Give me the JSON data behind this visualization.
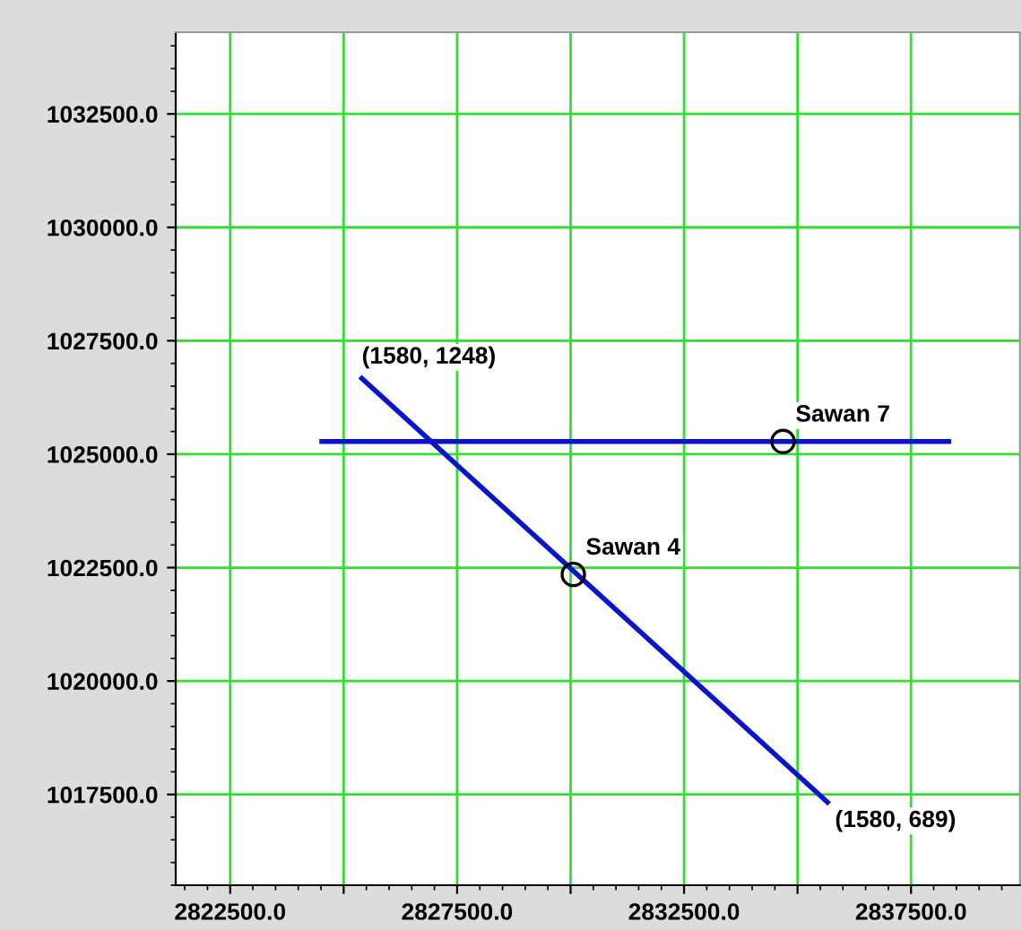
{
  "chart_data": {
    "type": "line",
    "xlim": [
      2821300,
      2839900
    ],
    "ylim": [
      1015500,
      1034300
    ],
    "xticks": [
      {
        "value": 2822500,
        "label": "2822500.0"
      },
      {
        "value": 2825000,
        "label": null
      },
      {
        "value": 2827500,
        "label": "2827500.0"
      },
      {
        "value": 2830000,
        "label": null
      },
      {
        "value": 2832500,
        "label": "2832500.0"
      },
      {
        "value": 2835000,
        "label": null
      },
      {
        "value": 2837500,
        "label": "2837500.0"
      }
    ],
    "yticks": [
      {
        "value": 1017500,
        "label": "1017500.0"
      },
      {
        "value": 1020000,
        "label": "1020000.0"
      },
      {
        "value": 1022500,
        "label": "1022500.0"
      },
      {
        "value": 1025000,
        "label": "1025000.0"
      },
      {
        "value": 1027500,
        "label": "1027500.0"
      },
      {
        "value": 1030000,
        "label": "1030000.0"
      },
      {
        "value": 1032500,
        "label": "1032500.0"
      }
    ],
    "grid": true,
    "series": [
      {
        "color": "#0a14c8",
        "x": [
          2824520,
          2838330
        ],
        "values": [
          1025280,
          1025280
        ]
      },
      {
        "color": "#0a14c8",
        "x": [
          2825400,
          2835660
        ],
        "values": [
          1026670,
          1017330
        ]
      },
      {
        "type": "scatter",
        "name": "Sawan 7",
        "color": "#000000",
        "marker": "circle",
        "x": [
          2834680
        ],
        "values": [
          1025280
        ]
      },
      {
        "type": "scatter",
        "name": "Sawan 4",
        "color": "#000000",
        "marker": "circle",
        "x": [
          2830060
        ],
        "values": [
          1022350
        ]
      }
    ],
    "annotations": [
      {
        "text": "(1580, 1248)",
        "x": 2825400,
        "y": 1026670
      },
      {
        "text": "(1580, 689)",
        "x": 2835660,
        "y": 1017330
      }
    ]
  }
}
